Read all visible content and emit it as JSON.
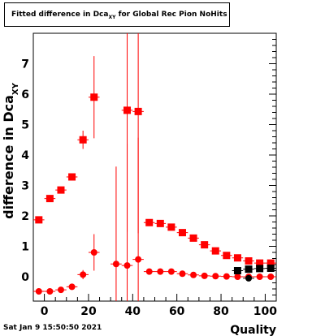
{
  "title_main": "Fitted difference in Dca",
  "title_sub": "XY",
  "title_rest": " for Global Rec Pion NoHits",
  "footer": "Sat Jan  9 15:50:50 2021",
  "chart_data": {
    "type": "scatter",
    "title": "Fitted difference in Dca_XY for Global Rec Pion NoHits",
    "xlabel": "Quality",
    "ylabel_main": "difference in Dca",
    "ylabel_sub": "XY",
    "xlim": [
      -5,
      105
    ],
    "ylim": [
      -0.8,
      8.0
    ],
    "x_ticks": [
      0,
      20,
      40,
      60,
      80,
      100
    ],
    "y_ticks": [
      0,
      1,
      2,
      3,
      4,
      5,
      6,
      7
    ],
    "grid": false,
    "colors": {
      "red": "#ff0000",
      "black": "#000000"
    },
    "series": [
      {
        "color": "red",
        "marker": "square",
        "points": [
          {
            "x": -2.5,
            "y": 1.87,
            "ey": 0.05
          },
          {
            "x": 2.5,
            "y": 2.57,
            "ey": 0.05
          },
          {
            "x": 7.5,
            "y": 2.85,
            "ey": 0.05
          },
          {
            "x": 12.5,
            "y": 3.28,
            "ey": 0.06
          },
          {
            "x": 17.5,
            "y": 4.5,
            "ey": 0.3
          },
          {
            "x": 22.5,
            "y": 5.9,
            "ey": 1.35
          },
          {
            "x": 37.5,
            "y": 5.47,
            "ey": 4.0
          },
          {
            "x": 42.5,
            "y": 5.43,
            "ey": 4.0
          },
          {
            "x": 47.5,
            "y": 1.78,
            "ey": 0.05
          },
          {
            "x": 52.5,
            "y": 1.75,
            "ey": 0.05
          },
          {
            "x": 57.5,
            "y": 1.63,
            "ey": 0.05
          },
          {
            "x": 62.5,
            "y": 1.45,
            "ey": 0.05
          },
          {
            "x": 67.5,
            "y": 1.27,
            "ey": 0.05
          },
          {
            "x": 72.5,
            "y": 1.05,
            "ey": 0.05
          },
          {
            "x": 77.5,
            "y": 0.85,
            "ey": 0.05
          },
          {
            "x": 82.5,
            "y": 0.7,
            "ey": 0.04
          },
          {
            "x": 87.5,
            "y": 0.62,
            "ey": 0.04
          },
          {
            "x": 92.5,
            "y": 0.52,
            "ey": 0.04
          },
          {
            "x": 97.5,
            "y": 0.45,
            "ey": 0.04
          },
          {
            "x": 102.5,
            "y": 0.45,
            "ey": 0.04
          }
        ]
      },
      {
        "color": "red",
        "marker": "circle",
        "points": [
          {
            "x": -2.5,
            "y": -0.48,
            "ey": 0.03
          },
          {
            "x": 2.5,
            "y": -0.48,
            "ey": 0.03
          },
          {
            "x": 7.5,
            "y": -0.43,
            "ey": 0.03
          },
          {
            "x": 12.5,
            "y": -0.33,
            "ey": 0.04
          },
          {
            "x": 17.5,
            "y": 0.07,
            "ey": 0.15
          },
          {
            "x": 22.5,
            "y": 0.8,
            "ey": 0.6
          },
          {
            "x": 32.5,
            "y": 0.42,
            "ey": 3.2
          },
          {
            "x": 37.5,
            "y": 0.37,
            "ey": 4.0
          },
          {
            "x": 42.5,
            "y": 0.57,
            "ey": 4.0
          },
          {
            "x": 47.5,
            "y": 0.17,
            "ey": 0.03
          },
          {
            "x": 52.5,
            "y": 0.17,
            "ey": 0.03
          },
          {
            "x": 57.5,
            "y": 0.17,
            "ey": 0.03
          },
          {
            "x": 62.5,
            "y": 0.1,
            "ey": 0.03
          },
          {
            "x": 67.5,
            "y": 0.06,
            "ey": 0.03
          },
          {
            "x": 72.5,
            "y": 0.03,
            "ey": 0.03
          },
          {
            "x": 77.5,
            "y": 0.02,
            "ey": 0.03
          },
          {
            "x": 82.5,
            "y": 0.01,
            "ey": 0.03
          },
          {
            "x": 87.5,
            "y": 0.0,
            "ey": 0.03
          },
          {
            "x": 92.5,
            "y": 0.0,
            "ey": 0.03
          },
          {
            "x": 97.5,
            "y": 0.0,
            "ey": 0.03
          },
          {
            "x": 102.5,
            "y": 0.0,
            "ey": 0.03
          }
        ]
      },
      {
        "color": "black",
        "marker": "square",
        "points": [
          {
            "x": 87.5,
            "y": 0.2,
            "ey": 0.03
          },
          {
            "x": 92.5,
            "y": 0.25,
            "ey": 0.03
          },
          {
            "x": 97.5,
            "y": 0.27,
            "ey": 0.03
          },
          {
            "x": 102.5,
            "y": 0.28,
            "ey": 0.03
          }
        ]
      },
      {
        "color": "black",
        "marker": "circle",
        "points": [
          {
            "x": 92.5,
            "y": -0.05,
            "ey": 0.03
          }
        ]
      }
    ]
  }
}
